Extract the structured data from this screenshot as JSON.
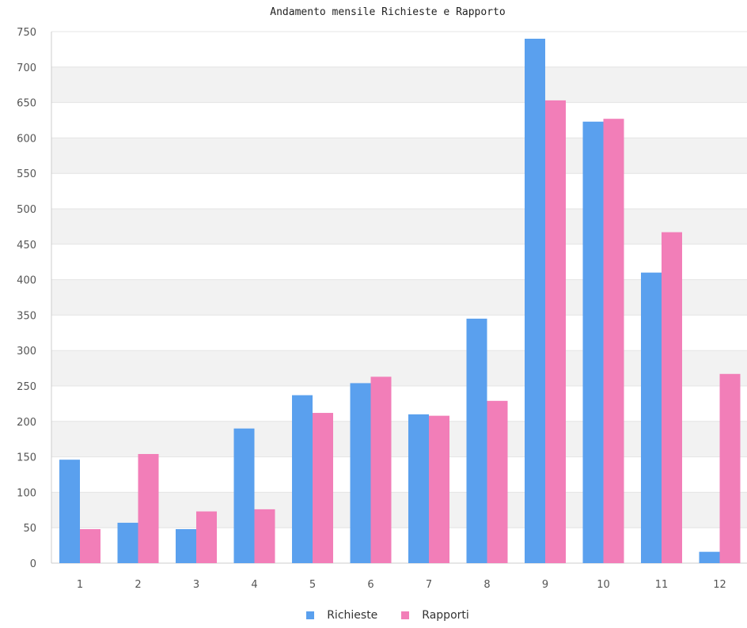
{
  "chart_data": {
    "type": "bar",
    "title": "Andamento mensile Richieste e Rapporto",
    "xlabel": "",
    "ylabel": "",
    "categories": [
      "1",
      "2",
      "3",
      "4",
      "5",
      "6",
      "7",
      "8",
      "9",
      "10",
      "11",
      "12"
    ],
    "series": [
      {
        "name": "Richieste",
        "color": "#5aa0ee",
        "values": [
          146,
          57,
          48,
          190,
          237,
          254,
          210,
          345,
          740,
          623,
          410,
          16
        ]
      },
      {
        "name": "Rapporti",
        "color": "#f27eb8",
        "values": [
          48,
          154,
          73,
          76,
          212,
          263,
          208,
          229,
          653,
          627,
          467,
          267
        ]
      }
    ],
    "ylim": [
      0,
      750
    ],
    "yticks": [
      0,
      50,
      100,
      150,
      200,
      250,
      300,
      350,
      400,
      450,
      500,
      550,
      600,
      650,
      700,
      750
    ],
    "grid": true,
    "legend_position": "bottom"
  }
}
